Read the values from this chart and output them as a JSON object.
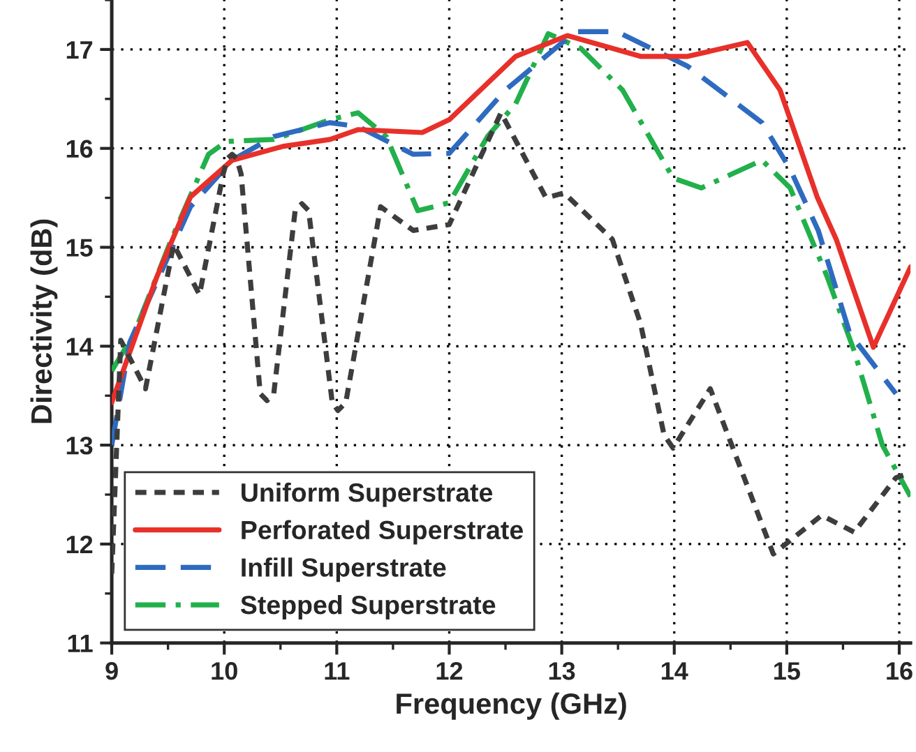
{
  "chart_data": {
    "type": "line",
    "xlabel": "Frequency (GHz)",
    "ylabel": "Directivity (dB)",
    "xlim": [
      9,
      16.1
    ],
    "xticks": [
      9,
      10,
      11,
      12,
      13,
      14,
      15,
      16
    ],
    "ylim": [
      11,
      17.5
    ],
    "yticks": [
      11,
      12,
      13,
      14,
      15,
      16,
      17
    ],
    "grid": true,
    "legend": "bottom left",
    "marker": "none",
    "series": [
      {
        "name": "Uniform Superstrate",
        "color": "#3d3d3d",
        "line_style": "dotted",
        "x": [
          9.0,
          9.08,
          9.3,
          9.55,
          9.78,
          9.99,
          10.03,
          10.07,
          10.11,
          10.15,
          10.32,
          10.38,
          10.44,
          10.63,
          10.69,
          10.75,
          10.96,
          11.01,
          11.08,
          11.39,
          11.68,
          12.0,
          12.46,
          12.86,
          13.02,
          13.45,
          13.7,
          13.91,
          13.99,
          14.32,
          14.88,
          15.31,
          15.6,
          15.97,
          16.1
        ],
        "values": [
          11.7,
          14.06,
          13.57,
          15.03,
          14.52,
          15.74,
          15.9,
          15.94,
          15.9,
          15.74,
          13.52,
          13.45,
          13.52,
          15.37,
          15.44,
          15.37,
          13.43,
          13.35,
          13.43,
          15.41,
          15.17,
          15.23,
          16.36,
          15.5,
          15.55,
          15.08,
          14.23,
          13.1,
          12.97,
          13.57,
          11.9,
          12.29,
          12.12,
          12.67,
          12.72
        ]
      },
      {
        "name": "Perforated Superstrate",
        "color": "#e8302a",
        "line_style": "solid",
        "x": [
          9.0,
          9.4,
          9.7,
          10.07,
          10.52,
          10.94,
          11.19,
          11.76,
          12.0,
          12.59,
          13.05,
          13.7,
          14.12,
          14.65,
          14.94,
          15.27,
          15.44,
          15.77,
          16.1
        ],
        "values": [
          13.43,
          14.7,
          15.51,
          15.88,
          16.02,
          16.09,
          16.19,
          16.16,
          16.29,
          16.93,
          17.14,
          16.93,
          16.93,
          17.07,
          16.59,
          15.51,
          15.08,
          13.99,
          14.8
        ]
      },
      {
        "name": "Infill Superstrate",
        "color": "#2e6bc0",
        "line_style": "dashed",
        "x": [
          9.0,
          9.16,
          9.7,
          10.07,
          10.44,
          10.94,
          11.19,
          11.68,
          12.0,
          12.5,
          12.71,
          13.12,
          13.49,
          14.12,
          14.78,
          15.03,
          15.28,
          15.56,
          15.97
        ],
        "values": [
          13.0,
          14.04,
          15.41,
          15.88,
          16.12,
          16.26,
          16.22,
          15.94,
          15.95,
          16.59,
          16.79,
          17.18,
          17.18,
          16.83,
          16.26,
          15.79,
          15.17,
          14.13,
          13.52
        ]
      },
      {
        "name": "Stepped Superstrate",
        "color": "#22b04b",
        "line_style": "dashdot",
        "x": [
          9.0,
          9.2,
          9.53,
          9.86,
          10.02,
          10.44,
          10.94,
          11.19,
          11.44,
          11.72,
          12.0,
          12.34,
          12.59,
          12.88,
          13.17,
          13.54,
          13.99,
          14.24,
          14.78,
          15.03,
          15.36,
          15.6,
          15.85,
          16.1
        ],
        "values": [
          13.75,
          14.13,
          15.08,
          15.94,
          16.07,
          16.09,
          16.29,
          16.36,
          16.12,
          15.37,
          15.45,
          16.12,
          16.45,
          17.16,
          17.01,
          16.59,
          15.7,
          15.6,
          15.88,
          15.6,
          14.7,
          13.95,
          13.0,
          12.48
        ]
      }
    ]
  }
}
